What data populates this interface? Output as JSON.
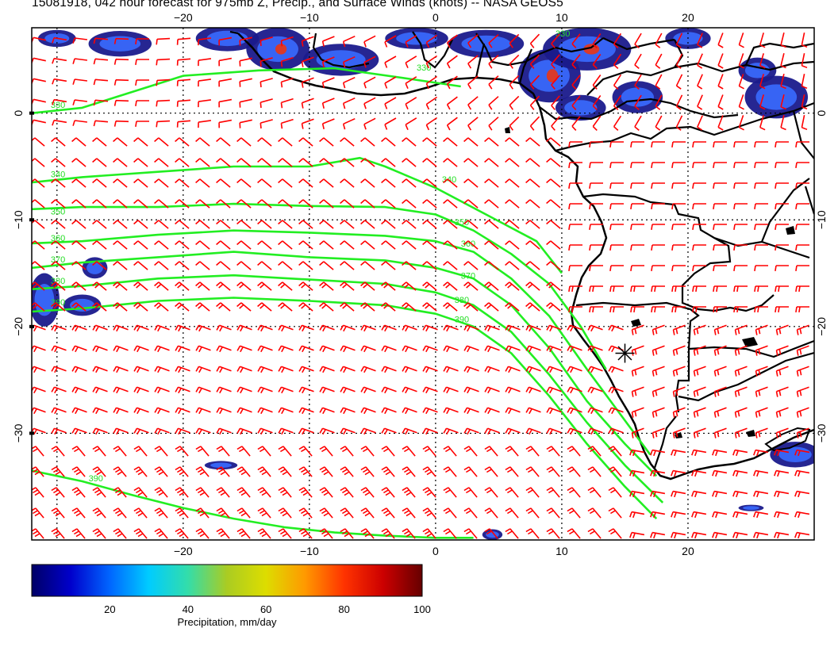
{
  "title": "15081918, 042 hour forecast for 975mb Z, Precip., and Surface Winds (knots) -- NASA GEOS5",
  "colors": {
    "wind_barbs": "#ff0000",
    "contours": "#22ee22",
    "coastline": "#000000",
    "grid": "#000000",
    "precip_low": "#1a1a8c",
    "precip_mid": "#3a6cff",
    "precip_high": "#d93a2a"
  },
  "chart_data": {
    "type": "heatmap",
    "title": "15081918, 042 hour forecast for 975mb Z, Precip., and Surface Winds (knots) -- NASA GEOS5",
    "projection": "cylindrical",
    "xlim": [
      -32,
      30
    ],
    "ylim": [
      -40,
      8
    ],
    "x_ticks": [
      -20,
      -10,
      0,
      10,
      20
    ],
    "x_tick_labels": [
      "−20",
      "−10",
      "0",
      "10",
      "20"
    ],
    "y_ticks": [
      0,
      -10,
      -20,
      -30
    ],
    "y_tick_labels": [
      "0",
      "−10",
      "−20",
      "−30"
    ],
    "grid": true,
    "marker": {
      "symbol": "star",
      "lon": 15,
      "lat": -22.5
    },
    "contour_levels": [
      330,
      340,
      350,
      360,
      370,
      380,
      390
    ],
    "contours": [
      {
        "level": 330,
        "label": "330",
        "label_pos": [
          -30.5,
          0.5
        ],
        "points": [
          [
            -32,
            0
          ],
          [
            -28,
            0.5
          ],
          [
            -24,
            2
          ],
          [
            -20,
            3.5
          ],
          [
            -14,
            4
          ],
          [
            -8,
            4.2
          ],
          [
            -2,
            3.2
          ],
          [
            2,
            2.5
          ]
        ]
      },
      {
        "level": 340,
        "label": "340",
        "label_pos": [
          -30.5,
          -6
        ],
        "points": [
          [
            -32,
            -6.5
          ],
          [
            -28,
            -6
          ],
          [
            -22,
            -5.5
          ],
          [
            -16,
            -5
          ],
          [
            -10,
            -5
          ],
          [
            -6,
            -4.2
          ],
          [
            -4,
            -5
          ],
          [
            0,
            -7
          ],
          [
            4,
            -9.5
          ],
          [
            8,
            -12
          ],
          [
            10,
            -15
          ]
        ]
      },
      {
        "level": 350,
        "label": "350",
        "label_pos": [
          -30.5,
          -9.5
        ],
        "points": [
          [
            -32,
            -9
          ],
          [
            -28,
            -8.8
          ],
          [
            -22,
            -8.8
          ],
          [
            -16,
            -8.5
          ],
          [
            -10,
            -8.7
          ],
          [
            -4,
            -8.8
          ],
          [
            0,
            -9.5
          ],
          [
            3,
            -11
          ],
          [
            6,
            -13.2
          ],
          [
            9,
            -16
          ],
          [
            11.5,
            -20
          ],
          [
            13.5,
            -24
          ]
        ]
      },
      {
        "level": 360,
        "label": "360",
        "label_pos": [
          -30.5,
          -12
        ],
        "points": [
          [
            -32,
            -12.2
          ],
          [
            -28,
            -12
          ],
          [
            -22,
            -11.4
          ],
          [
            -16,
            -11
          ],
          [
            -10,
            -11.2
          ],
          [
            -4,
            -11.5
          ],
          [
            0,
            -12
          ],
          [
            3,
            -13
          ],
          [
            6,
            -15.5
          ],
          [
            9,
            -19
          ],
          [
            12,
            -24
          ],
          [
            14.5,
            -28
          ],
          [
            17,
            -32
          ]
        ]
      },
      {
        "level": 370,
        "label": "370",
        "label_pos": [
          -30.5,
          -14
        ],
        "points": [
          [
            -32,
            -14.5
          ],
          [
            -28,
            -14
          ],
          [
            -22,
            -13.5
          ],
          [
            -16,
            -13
          ],
          [
            -10,
            -13.5
          ],
          [
            -4,
            -13.8
          ],
          [
            0,
            -14.5
          ],
          [
            3,
            -15.5
          ],
          [
            6,
            -18
          ],
          [
            9,
            -22
          ],
          [
            12,
            -27
          ],
          [
            15,
            -31
          ],
          [
            17.5,
            -34
          ]
        ]
      },
      {
        "level": 380,
        "label": "380",
        "label_pos": [
          -30.5,
          -16
        ],
        "points": [
          [
            -32,
            -16.5
          ],
          [
            -28,
            -16.2
          ],
          [
            -22,
            -15.5
          ],
          [
            -16,
            -15.2
          ],
          [
            -10,
            -15.6
          ],
          [
            -4,
            -16
          ],
          [
            0,
            -16.8
          ],
          [
            3,
            -18
          ],
          [
            6,
            -20.5
          ],
          [
            9,
            -24.5
          ],
          [
            12,
            -29
          ],
          [
            15,
            -33
          ],
          [
            18,
            -36.5
          ]
        ]
      },
      {
        "level": 390,
        "label": "390",
        "label_pos": [
          -30.5,
          -18
        ],
        "points": [
          [
            -32,
            -18.6
          ],
          [
            -28,
            -18.3
          ],
          [
            -22,
            -17.6
          ],
          [
            -16,
            -17.3
          ],
          [
            -10,
            -17.6
          ],
          [
            -4,
            -18
          ],
          [
            0,
            -18.8
          ],
          [
            3,
            -20
          ],
          [
            6,
            -22.5
          ],
          [
            9,
            -26.5
          ],
          [
            12,
            -31
          ],
          [
            15,
            -35
          ],
          [
            17.5,
            -38
          ]
        ]
      },
      {
        "level": 390,
        "label": "390",
        "label_pos": [
          -27.5,
          -34.5
        ],
        "points": [
          [
            -32,
            -33.5
          ],
          [
            -28,
            -34.5
          ],
          [
            -24,
            -35.8
          ],
          [
            -20,
            -37
          ],
          [
            -16,
            -38
          ],
          [
            -12,
            -38.8
          ],
          [
            -8,
            -39.3
          ],
          [
            -4,
            -39.6
          ],
          [
            0,
            -39.8
          ],
          [
            3,
            -39.8
          ]
        ]
      }
    ],
    "contour_labels_inline": [
      {
        "label": "330",
        "pos": [
          -1.5,
          4.0
        ]
      },
      {
        "label": "340",
        "pos": [
          0.5,
          -6.5
        ]
      },
      {
        "label": "350",
        "pos": [
          1.5,
          -10.5
        ]
      },
      {
        "label": "360",
        "pos": [
          2.0,
          -12.5
        ]
      },
      {
        "label": "370",
        "pos": [
          2.0,
          -15.5
        ]
      },
      {
        "label": "380",
        "pos": [
          1.5,
          -17.8
        ]
      },
      {
        "label": "390",
        "pos": [
          1.5,
          -19.6
        ]
      },
      {
        "label": "330",
        "pos": [
          9.5,
          7.2
        ]
      }
    ],
    "precip_areas": [
      {
        "lon": -25,
        "lat": 6.5,
        "rx": 2.5,
        "ry": 1.2,
        "intensity": 0.3
      },
      {
        "lon": -30,
        "lat": 7,
        "rx": 1.5,
        "ry": 0.8,
        "intensity": 0.25
      },
      {
        "lon": -16.5,
        "lat": 7,
        "rx": 2.5,
        "ry": 1.2,
        "intensity": 0.35
      },
      {
        "lon": -12.5,
        "lat": 6,
        "rx": 2.5,
        "ry": 2.0,
        "intensity": 0.45
      },
      {
        "lon": -7.5,
        "lat": 5,
        "rx": 3.0,
        "ry": 1.5,
        "intensity": 0.35
      },
      {
        "lon": -1.5,
        "lat": 7,
        "rx": 2.5,
        "ry": 1.0,
        "intensity": 0.3
      },
      {
        "lon": 4,
        "lat": 6.5,
        "rx": 3.0,
        "ry": 1.3,
        "intensity": 0.35
      },
      {
        "lon": 9,
        "lat": 3.5,
        "rx": 2.5,
        "ry": 2.5,
        "intensity": 0.45
      },
      {
        "lon": 12,
        "lat": 6,
        "rx": 3.5,
        "ry": 2.0,
        "intensity": 0.4
      },
      {
        "lon": 16,
        "lat": 1.5,
        "rx": 2.0,
        "ry": 1.5,
        "intensity": 0.3
      },
      {
        "lon": 11.5,
        "lat": 0.5,
        "rx": 2.0,
        "ry": 1.2,
        "intensity": 0.3
      },
      {
        "lon": 20,
        "lat": 7,
        "rx": 1.8,
        "ry": 1.0,
        "intensity": 0.3
      },
      {
        "lon": 27,
        "lat": 1.5,
        "rx": 2.5,
        "ry": 2.0,
        "intensity": 0.3
      },
      {
        "lon": 25.5,
        "lat": 4,
        "rx": 1.5,
        "ry": 1.2,
        "intensity": 0.25
      },
      {
        "lon": -31,
        "lat": -17.5,
        "rx": 1.2,
        "ry": 2.5,
        "intensity": 0.25
      },
      {
        "lon": -27,
        "lat": -14.5,
        "rx": 1.0,
        "ry": 1.0,
        "intensity": 0.2
      },
      {
        "lon": -28,
        "lat": -18,
        "rx": 1.5,
        "ry": 1.0,
        "intensity": 0.2
      },
      {
        "lon": 28.5,
        "lat": -32,
        "rx": 2.0,
        "ry": 1.2,
        "intensity": 0.25
      },
      {
        "lon": -17,
        "lat": -33,
        "rx": 1.3,
        "ry": 0.4,
        "intensity": 0.2
      },
      {
        "lon": 4.5,
        "lat": -39.5,
        "rx": 0.8,
        "ry": 0.5,
        "intensity": 0.2
      },
      {
        "lon": 25,
        "lat": -37,
        "rx": 1.0,
        "ry": 0.3,
        "intensity": 0.2
      }
    ],
    "colorbar": {
      "label": "Precipitation, mm/day",
      "range": [
        0,
        100
      ],
      "ticks": [
        20,
        40,
        60,
        80,
        100
      ],
      "tick_labels": [
        "20",
        "40",
        "60",
        "80",
        "100"
      ],
      "colors": [
        "#000066",
        "#0000cc",
        "#0066ff",
        "#00ccff",
        "#33ddaa",
        "#aacc22",
        "#dddd00",
        "#ff9900",
        "#ff3300",
        "#cc0000",
        "#660000"
      ]
    }
  }
}
